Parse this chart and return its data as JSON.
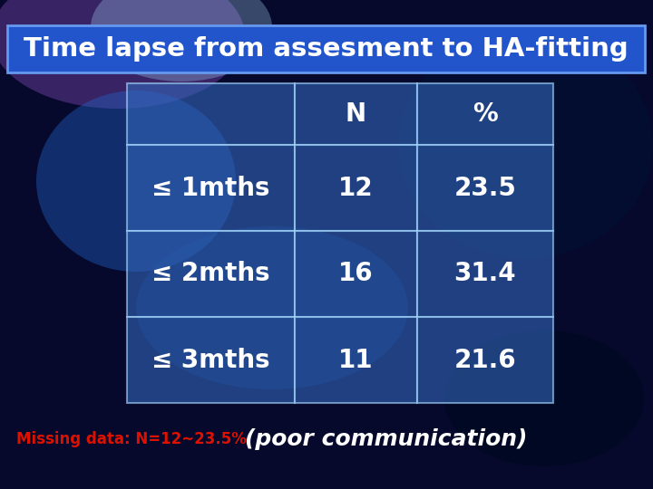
{
  "title": "Time lapse from assesment to HA-fitting",
  "title_bg": "#2255cc",
  "title_color": "#ffffff",
  "table_headers": [
    "",
    "N",
    "%"
  ],
  "table_rows": [
    [
      "≤ 1mths",
      "12",
      "23.5"
    ],
    [
      "≤ 2mths",
      "16",
      "31.4"
    ],
    [
      "≤ 3mths",
      "11",
      "21.6"
    ]
  ],
  "footer_left": "Missing data: N=12~23.5%",
  "footer_right": "(poor communication)",
  "footer_left_color": "#dd1100",
  "footer_right_color": "#ffffff",
  "table_border_color": "#aaddff",
  "cell_color": "#3366bb",
  "cell_alpha": 0.6
}
